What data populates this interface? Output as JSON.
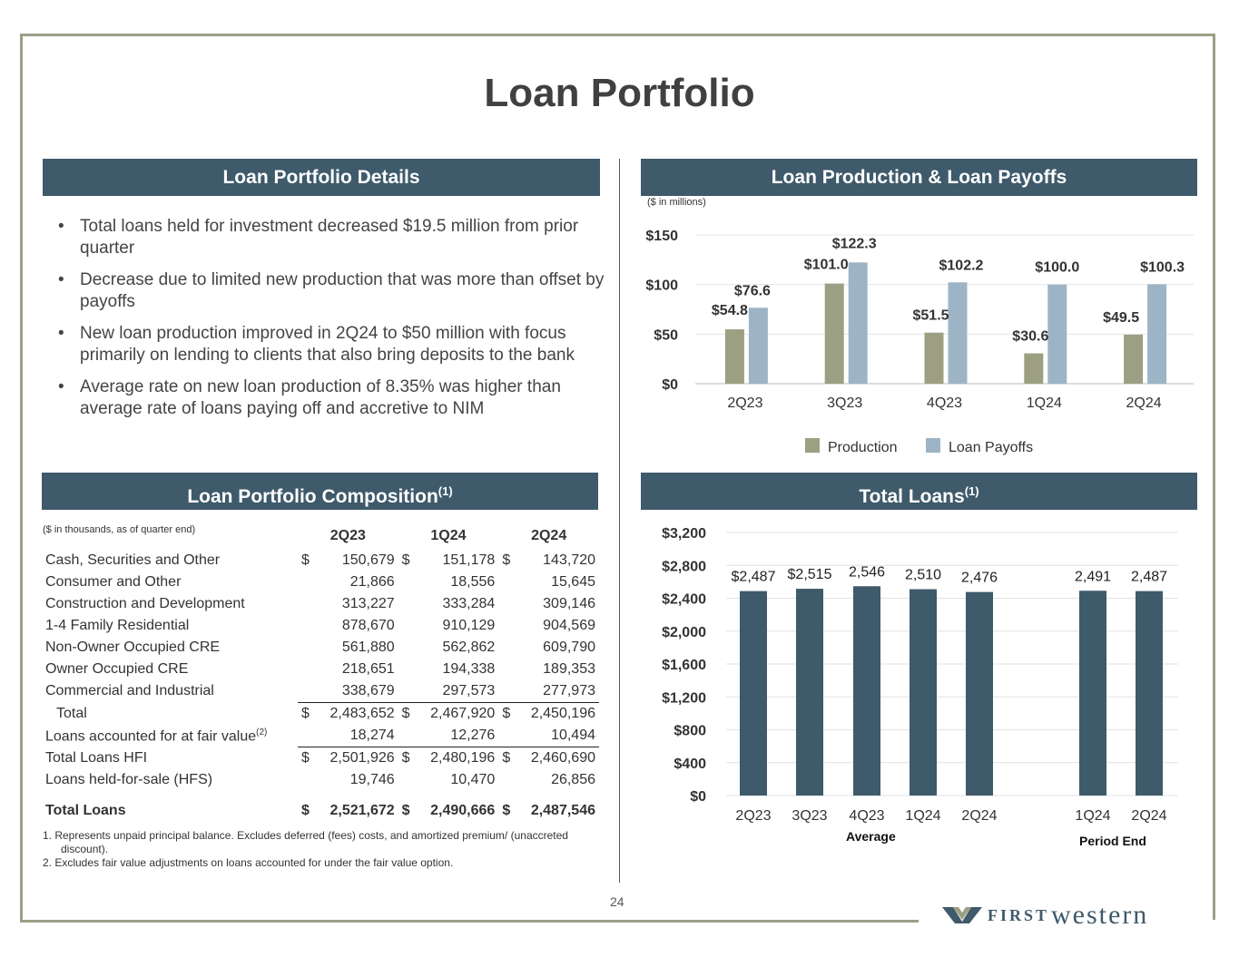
{
  "title": "Loan Portfolio",
  "sections": {
    "details": "Loan Portfolio Details",
    "production": "Loan Production & Loan Payoffs",
    "composition": "Loan Portfolio Composition",
    "composition_sup": "(1)",
    "total_loans": "Total Loans",
    "total_loans_sup": "(1)"
  },
  "bullets": [
    "Total loans held for investment decreased $19.5 million from prior quarter",
    "Decrease due to limited new production that was more than offset by payoffs",
    "New loan production improved in 2Q24 to $50 million with focus primarily on  lending to clients that also bring deposits to the bank",
    "Average rate on new loan production of 8.35% was higher than average rate of loans paying off and accretive to NIM"
  ],
  "composition": {
    "note": "($ in thousands, as of quarter end)",
    "columns": [
      "2Q23",
      "1Q24",
      "2Q24"
    ],
    "rows": [
      {
        "label": "Cash, Securities and Other",
        "values": [
          "150,679",
          "151,178",
          "143,720"
        ],
        "dollar": true
      },
      {
        "label": "Consumer and Other",
        "values": [
          "21,866",
          "18,556",
          "15,645"
        ]
      },
      {
        "label": "Construction and Development",
        "values": [
          "313,227",
          "333,284",
          "309,146"
        ]
      },
      {
        "label": "1-4 Family Residential",
        "values": [
          "878,670",
          "910,129",
          "904,569"
        ]
      },
      {
        "label": "Non-Owner Occupied CRE",
        "values": [
          "561,880",
          "562,862",
          "609,790"
        ]
      },
      {
        "label": "Owner Occupied CRE",
        "values": [
          "218,651",
          "194,338",
          "189,353"
        ]
      },
      {
        "label": "Commercial and Industrial",
        "values": [
          "338,679",
          "297,573",
          "277,973"
        ]
      },
      {
        "label": "Total",
        "values": [
          "2,483,652",
          "2,467,920",
          "2,450,196"
        ],
        "dollar": true,
        "line": true,
        "indent": true
      },
      {
        "label": "Loans accounted for at fair value",
        "sup": "(2)",
        "values": [
          "18,274",
          "12,276",
          "10,494"
        ]
      },
      {
        "label": "Total Loans HFI",
        "values": [
          "2,501,926",
          "2,480,196",
          "2,460,690"
        ],
        "dollar": true,
        "line": true
      },
      {
        "label": "Loans held-for-sale (HFS)",
        "values": [
          "19,746",
          "10,470",
          "26,856"
        ]
      },
      {
        "label": "Total Loans",
        "values": [
          "2,521,672",
          "2,490,666",
          "2,487,546"
        ],
        "dollar": true,
        "bold": true
      }
    ],
    "footnotes": [
      "1.  Represents  unpaid  principal  balance.  Excludes  deferred  (fees)  costs,  and  amortized  premium/ (unaccreted discount).",
      "2.   Excludes  fair value adjustments on loans accounted for under the fair value option."
    ]
  },
  "page_number": "24",
  "logo": {
    "first": "FIRST",
    "western": "western"
  },
  "chart_data": [
    {
      "type": "bar",
      "note": "($ in millions)",
      "categories": [
        "2Q23",
        "3Q23",
        "4Q23",
        "1Q24",
        "2Q24"
      ],
      "series": [
        {
          "name": "Production",
          "values": [
            54.8,
            101.0,
            51.5,
            30.6,
            49.5
          ],
          "labels": [
            "$54.8",
            "$101.0",
            "$51.5",
            "$30.6",
            "$49.5"
          ],
          "color": "#9c9f82"
        },
        {
          "name": "Loan Payoffs",
          "values": [
            76.6,
            122.3,
            102.2,
            100.0,
            100.3
          ],
          "labels": [
            "$76.6",
            "$122.3",
            "$102.2",
            "$100.0",
            "$100.3"
          ],
          "color": "#9db4c6"
        }
      ],
      "yticks": [
        "$0",
        "$50",
        "$100",
        "$150"
      ],
      "ylim": [
        0,
        150
      ],
      "legend": "bottom"
    },
    {
      "type": "bar",
      "categories": [
        "2Q23",
        "3Q23",
        "4Q23",
        "1Q24",
        "2Q24",
        "1Q24",
        "2Q24"
      ],
      "values": [
        2487,
        2515,
        2546,
        2510,
        2476,
        2491,
        2487
      ],
      "labels": [
        "$2,487",
        "$2,515",
        "2,546",
        "2,510",
        "2,476",
        "2,491",
        "2,487"
      ],
      "groups": [
        "Average",
        "Period End"
      ],
      "yticks": [
        "$0",
        "$400",
        "$800",
        "$1,200",
        "$1,600",
        "$2,000",
        "$2,400",
        "$2,800",
        "$3,200"
      ],
      "ylim": [
        0,
        3200
      ],
      "color": "#3e5a6b"
    }
  ]
}
